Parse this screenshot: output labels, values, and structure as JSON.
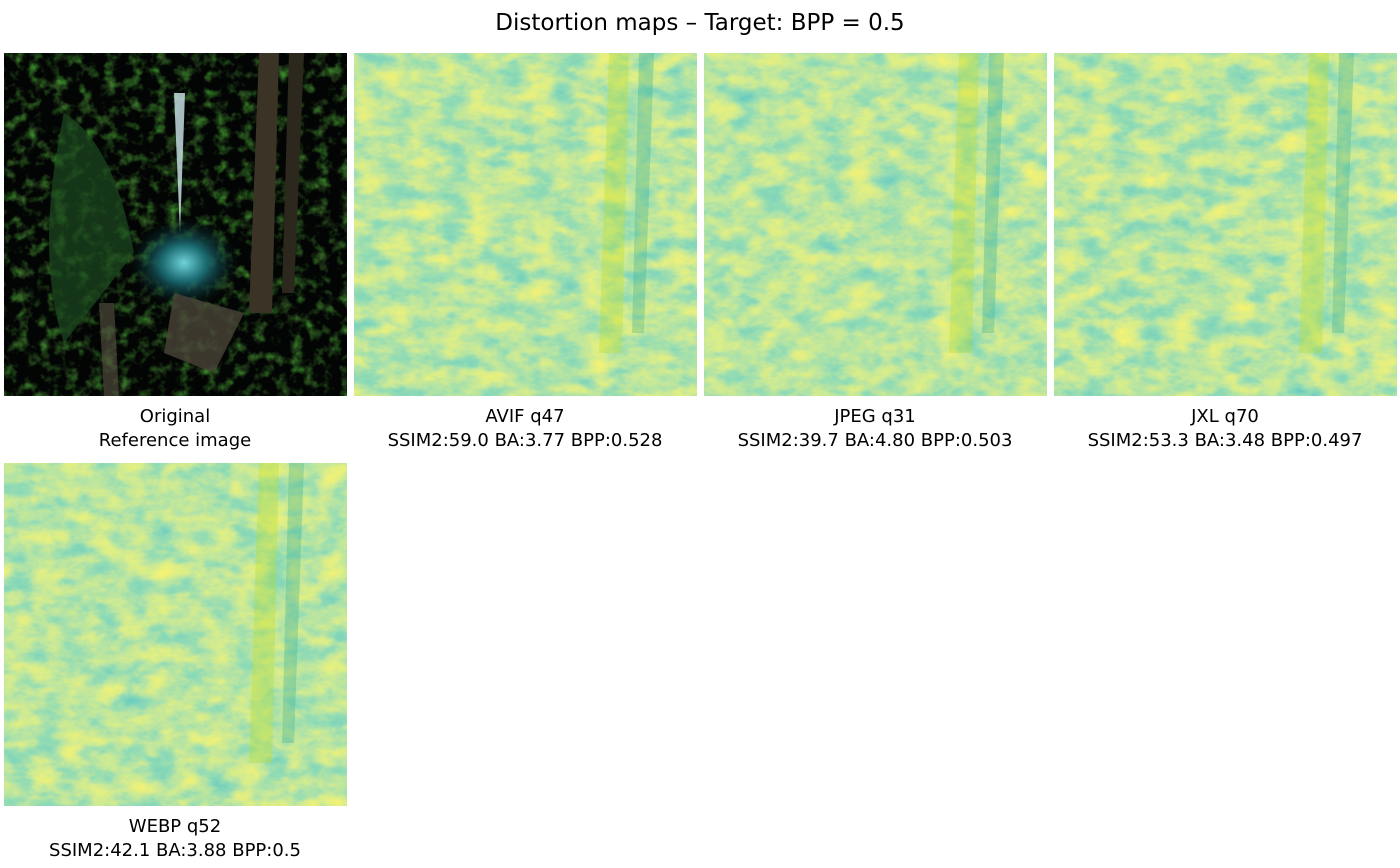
{
  "figure": {
    "title": "Distortion maps – Target: BPP = 0.5",
    "colormap": "viridis",
    "panels": [
      {
        "kind": "original",
        "name": "Original",
        "subtitle": "Reference image"
      },
      {
        "kind": "map",
        "name": "AVIF q47",
        "subtitle": "SSIM2:59.0 BA:3.77 BPP:0.528",
        "seed": 3
      },
      {
        "kind": "map",
        "name": "JPEG q31",
        "subtitle": "SSIM2:39.7 BA:4.80 BPP:0.503",
        "seed": 7
      },
      {
        "kind": "map",
        "name": "JXL q70",
        "subtitle": "SSIM2:53.3 BA:3.48 BPP:0.497",
        "seed": 11
      },
      {
        "kind": "map",
        "name": "WEBP q52",
        "subtitle": "SSIM2:42.1 BA:3.88 BPP:0.5",
        "seed": 19
      }
    ]
  }
}
